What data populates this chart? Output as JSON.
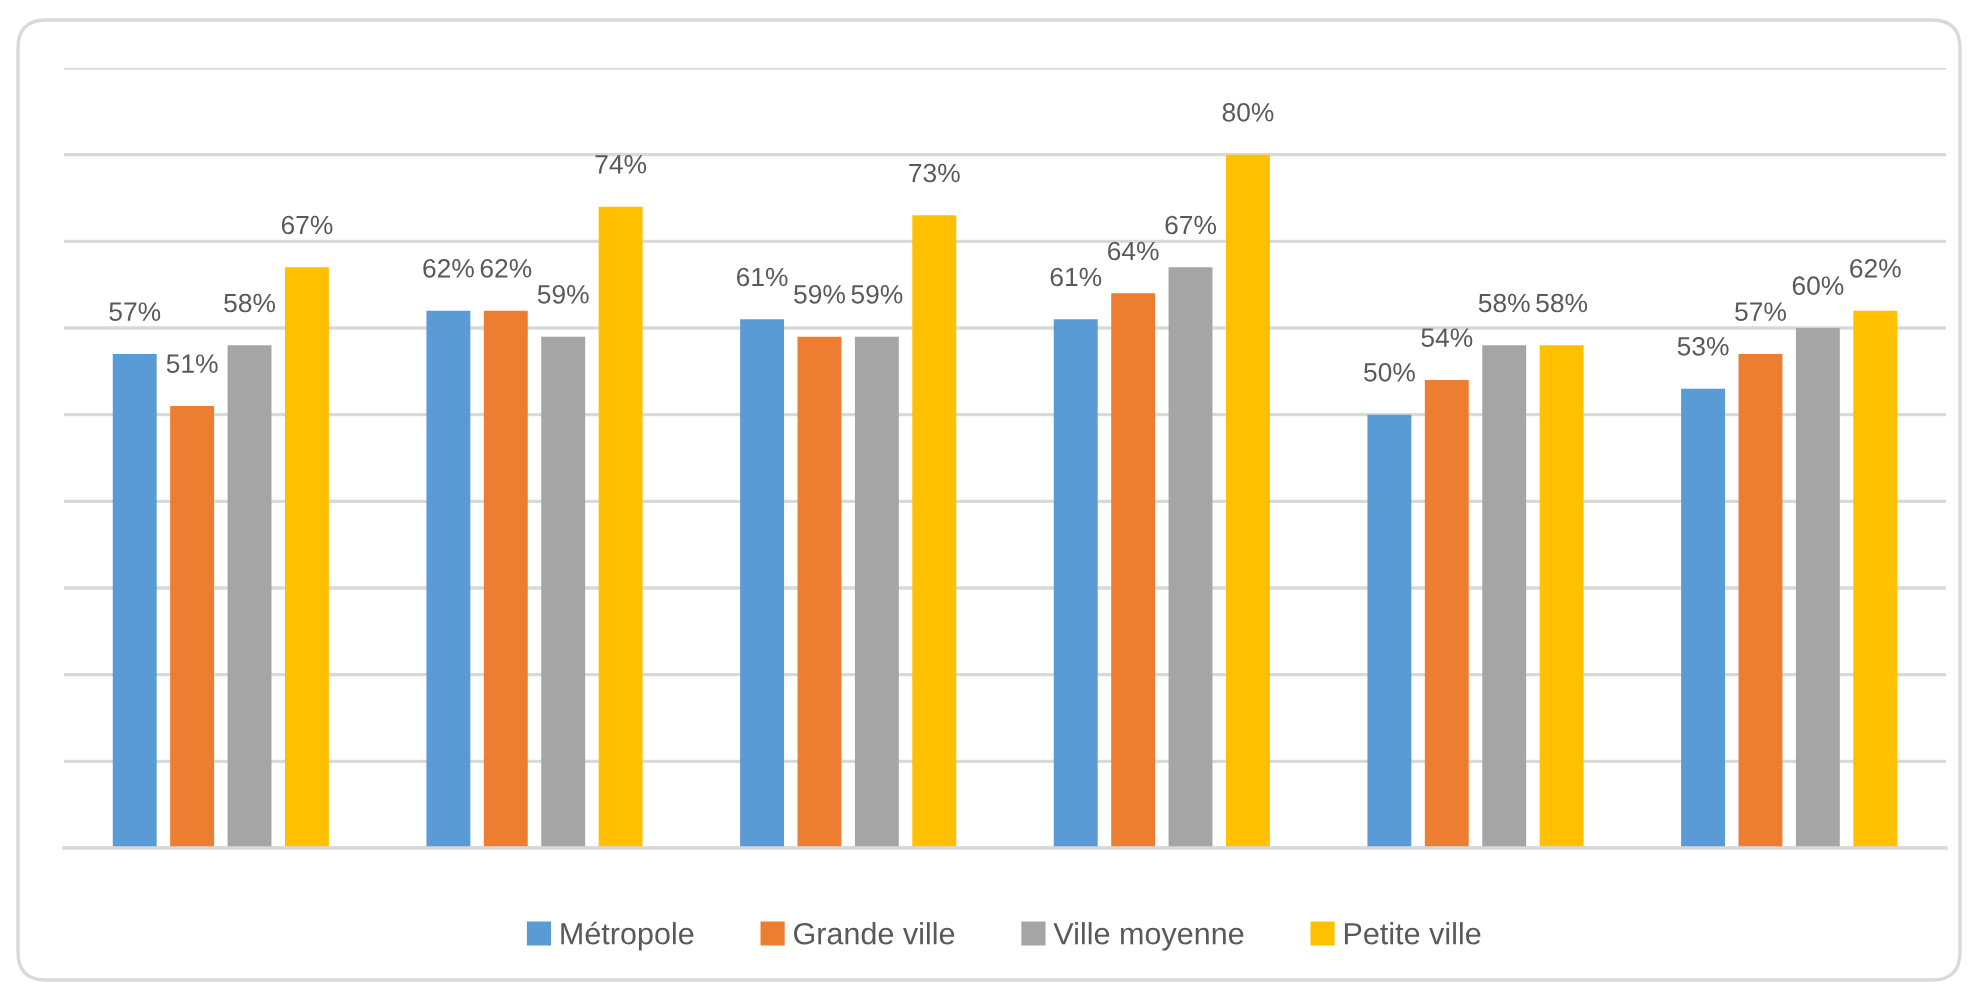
{
  "chart_data": {
    "type": "bar",
    "categories": [
      null,
      null,
      null,
      null,
      null,
      null
    ],
    "series": [
      {
        "name": "Métropole",
        "color": "#5b9bd5",
        "values": [
          57,
          62,
          61,
          61,
          50,
          53
        ],
        "value_labels": [
          "57%",
          "62%",
          "61%",
          "61%",
          "50%",
          "53%"
        ]
      },
      {
        "name": "Grande ville",
        "color": "#ed7d31",
        "values": [
          51,
          62,
          59,
          64,
          54,
          57
        ],
        "value_labels": [
          "51%",
          "62%",
          "59%",
          "64%",
          "54%",
          "57%"
        ]
      },
      {
        "name": "Ville moyenne",
        "color": "#a5a5a5",
        "values": [
          58,
          59,
          59,
          67,
          58,
          60
        ],
        "value_labels": [
          "58%",
          "59%",
          "59%",
          "67%",
          "58%",
          "60%"
        ]
      },
      {
        "name": "Petite ville",
        "color": "#ffc000",
        "values": [
          67,
          74,
          73,
          80,
          58,
          62
        ],
        "value_labels": [
          "67%",
          "74%",
          "73%",
          "80%",
          "58%",
          "62%"
        ]
      }
    ],
    "ylim": [
      0,
      90
    ],
    "yticks": [
      {
        "value": 0,
        "label": null
      },
      {
        "value": 10,
        "label": null
      },
      {
        "value": 20,
        "label": null
      },
      {
        "value": 30,
        "label": null
      },
      {
        "value": 40,
        "label": null
      },
      {
        "value": 50,
        "label": null
      },
      {
        "value": 60,
        "label": null
      },
      {
        "value": 70,
        "label": null
      },
      {
        "value": 80,
        "label": null
      },
      {
        "value": 90,
        "label": null
      }
    ],
    "tick_labels": false,
    "grid": "y",
    "legend": "bottom"
  }
}
